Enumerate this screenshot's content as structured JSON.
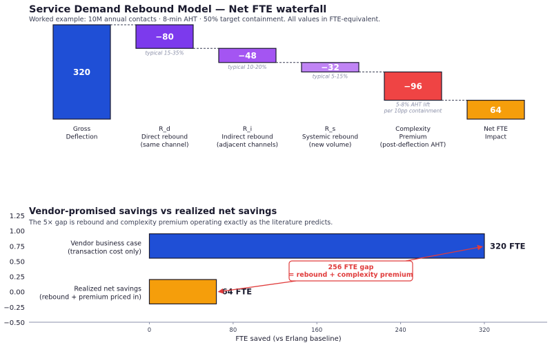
{
  "chart_data": [
    {
      "type": "waterfall",
      "title": "Service Demand Rebound Model — Net FTE waterfall",
      "subtitle": "Worked example: 10M annual contacts · 8-min AHT · 50% target containment.  All values in FTE-equivalent.",
      "steps": [
        {
          "category": [
            "Gross",
            "Deflection"
          ],
          "value": 320,
          "label": "320",
          "kind": "total",
          "color": "#1f4fd6",
          "note": []
        },
        {
          "category": [
            "R_d",
            "Direct rebound",
            "(same channel)"
          ],
          "value": -80,
          "label": "−80",
          "kind": "delta",
          "color": "#7c3aed",
          "note": [
            "typical 15-35%"
          ]
        },
        {
          "category": [
            "R_i",
            "Indirect rebound",
            "(adjacent channels)"
          ],
          "value": -48,
          "label": "−48",
          "kind": "delta",
          "color": "#a455f2",
          "note": [
            "typical 10-20%"
          ]
        },
        {
          "category": [
            "R_s",
            "Systemic rebound",
            "(new volume)"
          ],
          "value": -32,
          "label": "−32",
          "kind": "delta",
          "color": "#c084f5",
          "note": [
            "typical  5-15%"
          ]
        },
        {
          "category": [
            "Complexity",
            "Premium",
            "(post-deflection AHT)"
          ],
          "value": -96,
          "label": "−96",
          "kind": "delta",
          "color": "#ef4444",
          "note": [
            "5-8% AHT lift",
            "per 10pp containment"
          ]
        },
        {
          "category": [
            "Net FTE",
            "Impact"
          ],
          "value": 64,
          "label": "64",
          "kind": "total",
          "color": "#f59e0b",
          "note": []
        }
      ]
    },
    {
      "type": "bar",
      "orientation": "horizontal",
      "title": "Vendor-promised savings vs realized net savings",
      "subtitle": "The 5× gap is rebound and complexity premium operating exactly as the literature predicts.",
      "categories": [
        [
          "Vendor business case",
          "(transaction cost only)"
        ],
        [
          "Realized net savings",
          "(rebound + premium priced in)"
        ]
      ],
      "values": [
        320,
        64
      ],
      "value_labels": [
        "320 FTE",
        "64 FTE"
      ],
      "colors": [
        "#1f4fd6",
        "#f59e0b"
      ],
      "y_positions": [
        0.75,
        0.0
      ],
      "xlabel": "FTE saved (vs Erlang baseline)",
      "xticks": [
        0,
        80,
        160,
        240,
        320
      ],
      "xlim": [
        -115,
        380
      ],
      "yticks": [
        "1.25",
        "1.00",
        "0.75",
        "0.50",
        "0.25",
        "0.00",
        "−0.25",
        "−0.50"
      ],
      "ylim": [
        -0.5,
        1.25
      ],
      "annotation": [
        "256 FTE gap",
        "= rebound + complexity premium"
      ],
      "annotation_color": "#e03c3c"
    }
  ]
}
